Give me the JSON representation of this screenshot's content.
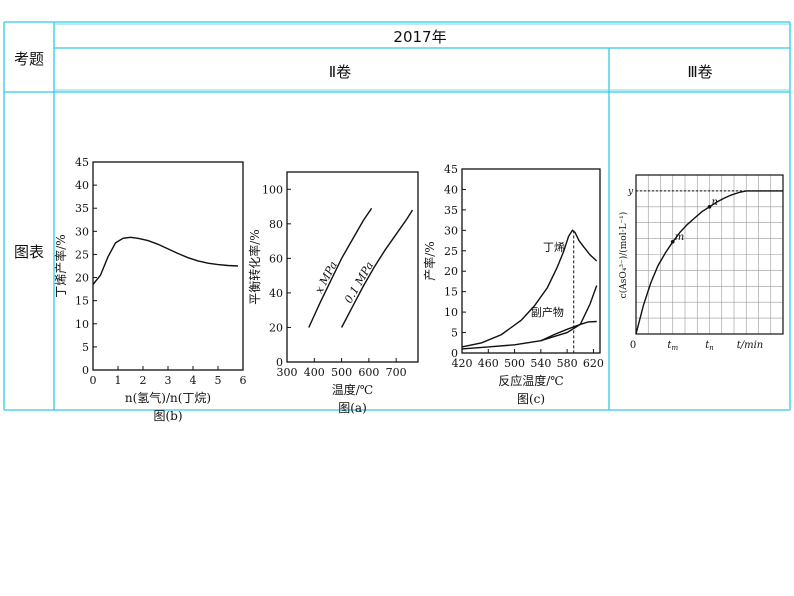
{
  "table": {
    "year_header": "2017年",
    "row_label_topic": "考题",
    "row_label_chart": "图表",
    "col_ii": "Ⅱ卷",
    "col_iii": "Ⅲ卷"
  },
  "chart_data": [
    {
      "id": "b",
      "type": "line",
      "caption": "图(b)",
      "xlabel": "n(氢气)/n(丁烷)",
      "ylabel": "丁烯产率/%",
      "xlim": [
        0,
        6
      ],
      "ylim": [
        0,
        45
      ],
      "xticks": [
        "0",
        "1",
        "2",
        "3",
        "4",
        "5",
        "6"
      ],
      "yticks": [
        "0",
        "5",
        "10",
        "15",
        "20",
        "25",
        "30",
        "35",
        "40",
        "45"
      ],
      "series": [
        {
          "x": [
            0.0,
            0.3,
            0.6,
            0.9,
            1.2,
            1.5,
            1.8,
            2.2,
            2.6,
            3.0,
            3.4,
            3.8,
            4.2,
            4.6,
            5.0,
            5.4,
            5.8
          ],
          "y": [
            18.5,
            20.5,
            24.5,
            27.5,
            28.5,
            28.7,
            28.5,
            28.0,
            27.2,
            26.2,
            25.2,
            24.3,
            23.6,
            23.1,
            22.8,
            22.6,
            22.5
          ]
        }
      ]
    },
    {
      "id": "a",
      "type": "line",
      "caption": "图(a)",
      "xlabel": "温度/℃",
      "ylabel": "平衡转化率/%",
      "xlim": [
        300,
        780
      ],
      "ylim": [
        0,
        110
      ],
      "xticks": [
        "300",
        "400",
        "500",
        "600",
        "700"
      ],
      "yticks": [
        "0",
        "20",
        "40",
        "60",
        "80",
        "100"
      ],
      "series": [
        {
          "name": "x MPa",
          "x": [
            380,
            420,
            460,
            500,
            540,
            580,
            610
          ],
          "y": [
            20,
            34,
            47,
            60,
            71,
            82,
            89
          ]
        },
        {
          "name": "0.1 MPa",
          "x": [
            500,
            540,
            580,
            620,
            660,
            700,
            740,
            760
          ],
          "y": [
            20,
            32,
            44,
            55,
            65,
            74,
            83,
            88
          ]
        }
      ]
    },
    {
      "id": "c",
      "type": "line",
      "caption": "图(c)",
      "xlabel": "反应温度/℃",
      "ylabel": "产率/%",
      "xlim": [
        420,
        630
      ],
      "ylim": [
        0,
        45
      ],
      "xticks": [
        "420",
        "460",
        "500",
        "540",
        "580",
        "620"
      ],
      "yticks": [
        "0",
        "5",
        "10",
        "15",
        "20",
        "25",
        "30",
        "35",
        "40",
        "45"
      ],
      "series": [
        {
          "name": "丁烯",
          "x": [
            420,
            450,
            480,
            510,
            530,
            550,
            565,
            575,
            582,
            588,
            592,
            598,
            605,
            615,
            625
          ],
          "y": [
            1.5,
            2.5,
            4.5,
            8,
            11.5,
            16,
            21,
            25,
            28.5,
            30,
            29.5,
            27.5,
            26,
            24,
            22.5
          ]
        },
        {
          "name": "副产物",
          "x": [
            420,
            460,
            500,
            540,
            560,
            580,
            600,
            615,
            625
          ],
          "y": [
            1,
            1.5,
            2,
            3,
            4,
            5,
            7,
            12,
            16.5
          ]
        },
        {
          "name": "",
          "x": [
            540,
            560,
            580,
            600,
            612,
            625
          ],
          "y": [
            3,
            4.5,
            5.8,
            7,
            7.6,
            7.7
          ]
        }
      ],
      "annotations": [
        {
          "text": "丁烯",
          "x": 560,
          "y": 25
        },
        {
          "text": "副产物",
          "x": 550,
          "y": 9
        }
      ],
      "reference_line_x": 590
    },
    {
      "id": "iii",
      "type": "line",
      "caption": "",
      "xlabel": "t/min",
      "ylabel": "c(AsO₄³⁻)/(mol·L⁻¹)",
      "xlim": [
        0,
        10
      ],
      "ylim": [
        0,
        10
      ],
      "xticks": [
        "t_m",
        "t_n"
      ],
      "xtick_pos": [
        2.5,
        5.0
      ],
      "ylabel_ref": "y",
      "y_ref": 9.0,
      "origin_label": "0",
      "series": [
        {
          "x": [
            0,
            0.5,
            1,
            1.5,
            2,
            2.5,
            3,
            3.5,
            4,
            4.5,
            5,
            5.5,
            6,
            6.5,
            7,
            7.5,
            8,
            8.5,
            9,
            9.5,
            10
          ],
          "y": [
            0,
            1.8,
            3.2,
            4.3,
            5.1,
            5.8,
            6.4,
            6.9,
            7.3,
            7.7,
            8.0,
            8.3,
            8.55,
            8.75,
            8.9,
            9.0,
            9.0,
            9.0,
            9.0,
            9.0,
            9.0
          ]
        }
      ],
      "points": [
        {
          "label": "m",
          "x": 2.5,
          "y": 5.8
        },
        {
          "label": "n",
          "x": 5.0,
          "y": 8.0
        }
      ]
    }
  ]
}
